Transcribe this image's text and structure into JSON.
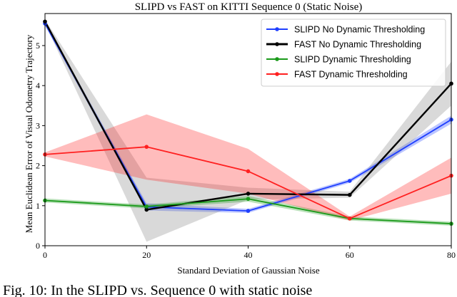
{
  "chart_data": {
    "type": "line",
    "title": "SLIPD vs FAST on KITTI Sequence 0 (Static Noise)",
    "xlabel": "Standard Deviation of Gaussian Noise",
    "ylabel": "Mean Euclidean Error of Visual Odometry Trajectory",
    "x": [
      0,
      20,
      40,
      60,
      80
    ],
    "xlim": [
      0,
      80
    ],
    "ylim": [
      0,
      5.8
    ],
    "xticks": [
      "0",
      "20",
      "40",
      "60",
      "80"
    ],
    "yticks": [
      "0",
      "1",
      "2",
      "3",
      "4",
      "5"
    ],
    "legend_position": "top-right",
    "series": [
      {
        "name": "SLIPD No Dynamic Thresholding",
        "color": "#1f3fff",
        "values": [
          5.55,
          0.97,
          0.87,
          1.62,
          3.15
        ],
        "band_lower": [
          5.5,
          0.88,
          0.82,
          1.57,
          3.05
        ],
        "band_upper": [
          5.6,
          1.06,
          0.92,
          1.67,
          3.25
        ]
      },
      {
        "name": "FAST No Dynamic Thresholding",
        "color": "#000000",
        "values": [
          5.6,
          0.9,
          1.3,
          1.27,
          4.05
        ],
        "band_lower": [
          5.55,
          0.1,
          1.15,
          1.2,
          3.5
        ],
        "band_upper": [
          5.65,
          1.7,
          1.45,
          1.35,
          4.6
        ]
      },
      {
        "name": "SLIPD Dynamic Thresholding",
        "color": "#1a9a1a",
        "values": [
          1.13,
          0.98,
          1.17,
          0.68,
          0.55
        ],
        "band_lower": [
          1.08,
          0.93,
          1.1,
          0.63,
          0.5
        ],
        "band_upper": [
          1.18,
          1.03,
          1.24,
          0.73,
          0.6
        ]
      },
      {
        "name": "FAST Dynamic Thresholding",
        "color": "#ff2020",
        "values": [
          2.28,
          2.47,
          1.86,
          0.68,
          1.75
        ],
        "band_lower": [
          2.23,
          1.65,
          1.3,
          0.63,
          1.3
        ],
        "band_upper": [
          2.33,
          3.28,
          2.42,
          0.73,
          2.2
        ]
      }
    ]
  },
  "caption": "Fig. 10: In the SLIPD vs. Sequence 0 with static noise"
}
